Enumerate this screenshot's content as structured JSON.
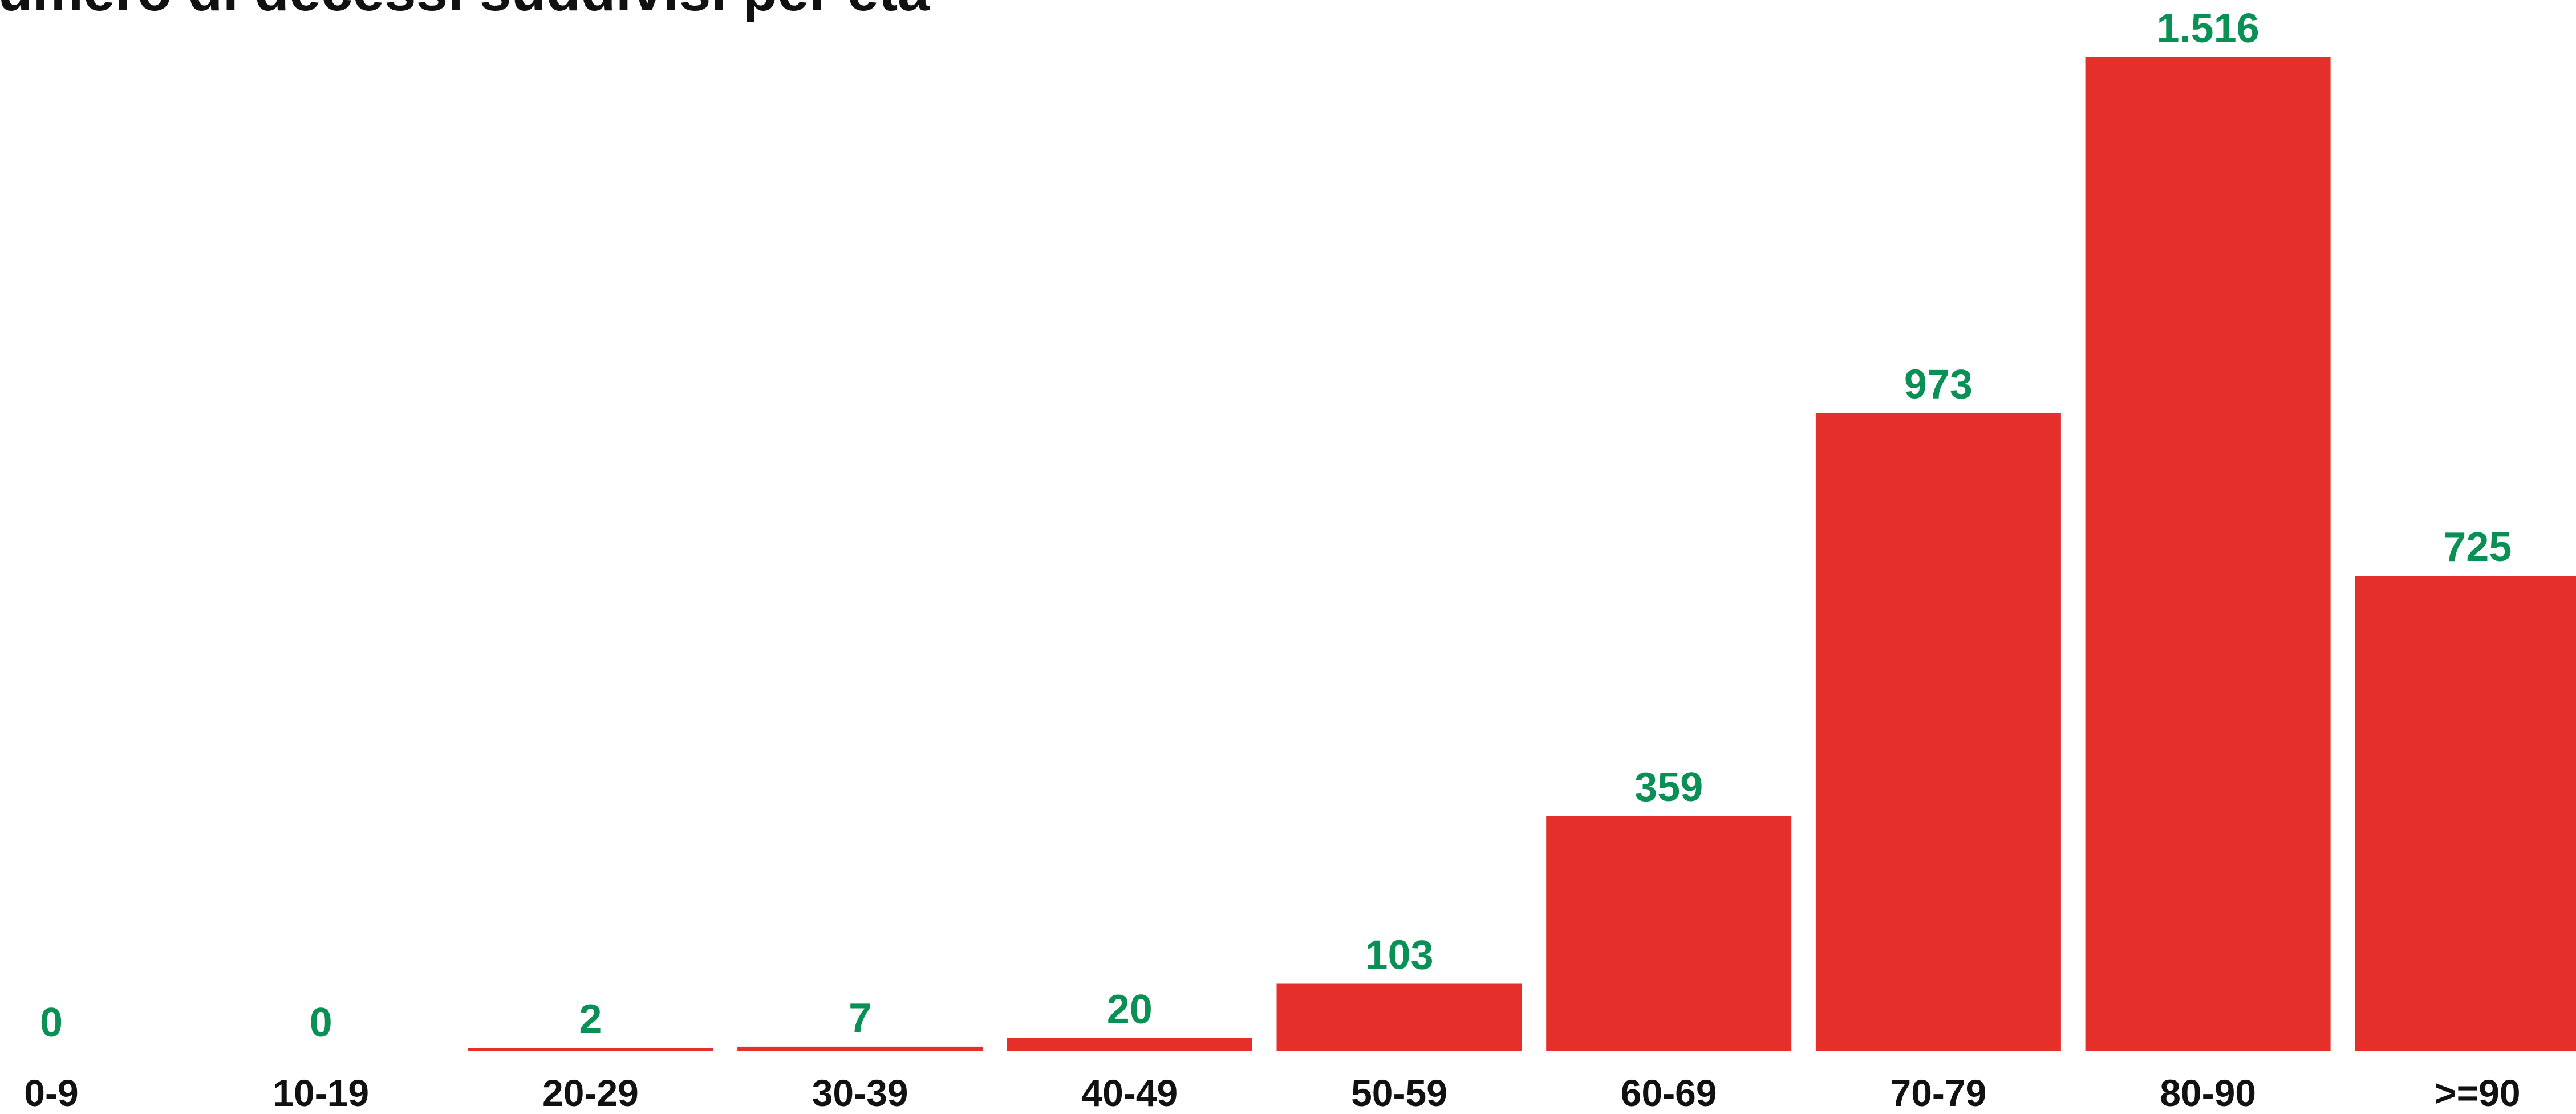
{
  "chart_data": {
    "type": "bar",
    "title": "umero di decessi suddivisi per età",
    "categories": [
      "0-9",
      "10-19",
      "20-29",
      "30-39",
      "40-49",
      "50-59",
      "60-69",
      "70-79",
      "80-90",
      ">=90"
    ],
    "values": [
      0,
      0,
      2,
      7,
      20,
      103,
      359,
      973,
      1516,
      725
    ],
    "value_labels": [
      "0",
      "0",
      "2",
      "7",
      "20",
      "103",
      "359",
      "973",
      "1.516",
      "725"
    ],
    "ylim": [
      0,
      1516
    ],
    "grid": false,
    "legend": "none",
    "colors": {
      "bar": "#e52f2a",
      "value_label": "#0a8f55",
      "category_label": "#111111",
      "title": "#111111"
    }
  }
}
